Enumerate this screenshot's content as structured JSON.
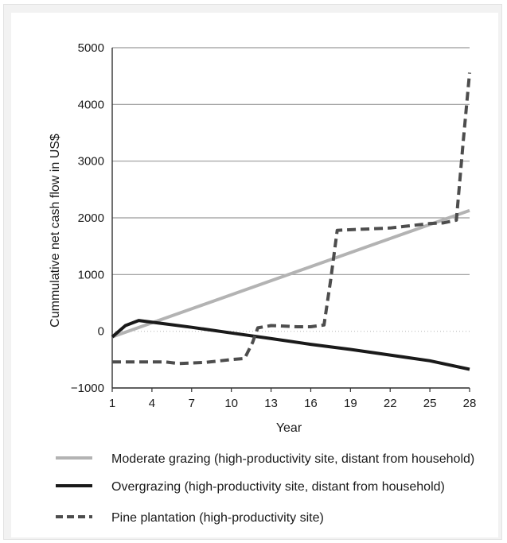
{
  "chart_data": {
    "type": "line",
    "title": "",
    "xlabel": "Year",
    "ylabel": "Cummulative net cash flow in US$",
    "x_ticks": [
      "1",
      "4",
      "7",
      "10",
      "13",
      "16",
      "19",
      "22",
      "25",
      "28"
    ],
    "y_ticks": [
      "5000",
      "4000",
      "3000",
      "2000",
      "1000",
      "0",
      "−1000"
    ],
    "xlim": [
      1,
      28
    ],
    "ylim": [
      -1000,
      5000
    ],
    "grid": "horizontal",
    "legend_position": "bottom",
    "series": [
      {
        "name": "Moderate grazing (high-productivity site, distant from household)",
        "style": "solid",
        "color": "#b3b3b3",
        "points": [
          [
            1,
            -100
          ],
          [
            28,
            2130
          ]
        ]
      },
      {
        "name": "Overgrazing (high-productivity site, distant from household)",
        "style": "solid",
        "color": "#1a1a1a",
        "points": [
          [
            1,
            -100
          ],
          [
            2,
            100
          ],
          [
            3,
            190
          ],
          [
            5,
            130
          ],
          [
            7,
            70
          ],
          [
            10,
            -30
          ],
          [
            13,
            -130
          ],
          [
            16,
            -230
          ],
          [
            19,
            -320
          ],
          [
            22,
            -420
          ],
          [
            25,
            -520
          ],
          [
            28,
            -670
          ]
        ]
      },
      {
        "name": "Pine plantation (high-productivity site)",
        "style": "dashed",
        "color": "#4d4d4d",
        "points": [
          [
            1,
            -540
          ],
          [
            5,
            -540
          ],
          [
            6,
            -570
          ],
          [
            8,
            -550
          ],
          [
            10,
            -500
          ],
          [
            11,
            -480
          ],
          [
            11.6,
            -200
          ],
          [
            12,
            60
          ],
          [
            13,
            100
          ],
          [
            15,
            80
          ],
          [
            16,
            80
          ],
          [
            17,
            110
          ],
          [
            17.5,
            900
          ],
          [
            18,
            1780
          ],
          [
            22,
            1820
          ],
          [
            25,
            1900
          ],
          [
            26,
            1910
          ],
          [
            27,
            1960
          ],
          [
            27.5,
            3300
          ],
          [
            28,
            4560
          ]
        ]
      }
    ]
  }
}
